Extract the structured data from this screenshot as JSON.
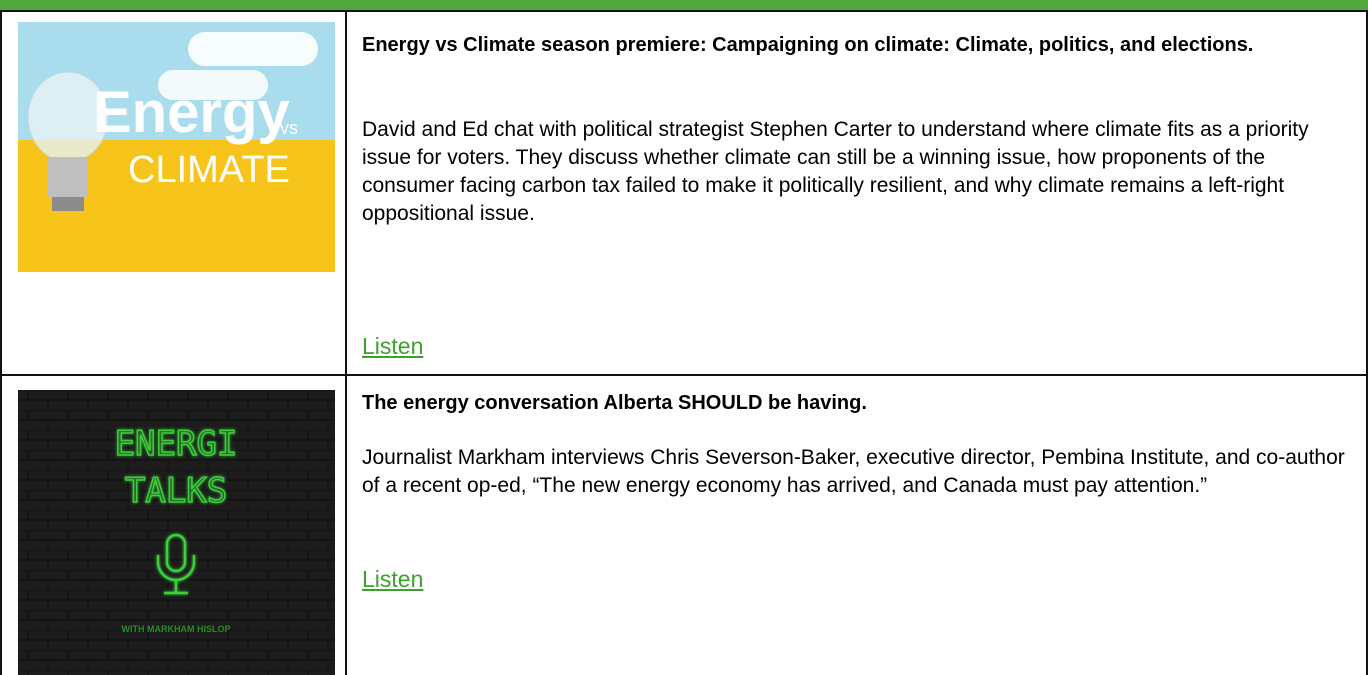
{
  "episodes": [
    {
      "image": {
        "title": "Energy",
        "vs": "vs",
        "subtitle": "CLIMATE"
      },
      "title": "Energy vs Climate season premiere: Campaigning on climate: Climate, politics, and elections.",
      "description": "David and Ed chat with political strategist Stephen Carter to understand where climate fits as a priority issue for voters. They discuss whether climate can still be a winning issue, how proponents of the consumer facing carbon tax failed to make it politically resilient, and why climate remains a left-right oppositional issue.",
      "link": "Listen"
    },
    {
      "image": {
        "title_line1": "ENERGI",
        "title_line2": "TALKS",
        "host": "WITH MARKHAM HISLOP"
      },
      "title": "The energy conversation Alberta SHOULD be having.",
      "description": "Journalist Markham interviews Chris Severson-Baker, executive director, Pembina Institute, and co-author of a recent op-ed, “The new energy economy has arrived, and Canada must pay attention.”",
      "link": "Listen"
    }
  ]
}
